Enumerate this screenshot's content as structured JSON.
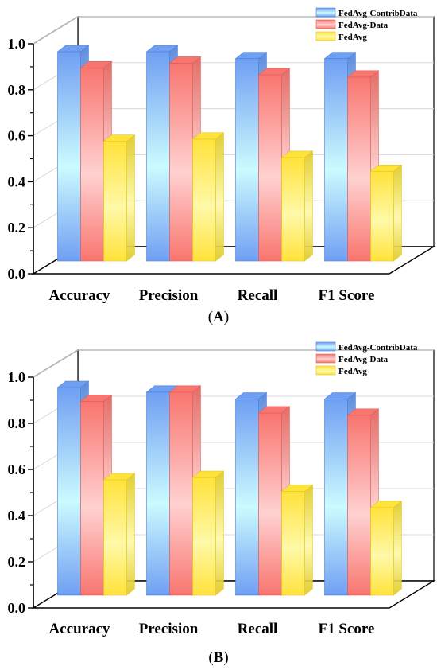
{
  "chart_data": [
    {
      "type": "bar",
      "panel_label": "(A)",
      "panel_letter": "A",
      "categories": [
        "Accuracy",
        "Precision",
        "Recall",
        "F1 Score"
      ],
      "series": [
        {
          "name": "FedAvg-ContribData",
          "values": [
            0.91,
            0.91,
            0.88,
            0.88
          ]
        },
        {
          "name": "FedAvg-Data",
          "values": [
            0.84,
            0.86,
            0.81,
            0.8
          ]
        },
        {
          "name": "FedAvg",
          "values": [
            0.52,
            0.53,
            0.45,
            0.39
          ]
        }
      ],
      "yticks": [
        "0.0",
        "0.2",
        "0.4",
        "0.6",
        "0.8",
        "1.0"
      ],
      "ylim": [
        0,
        1.0
      ],
      "legend": "top-right",
      "grid": true
    },
    {
      "type": "bar",
      "panel_label": "(B)",
      "panel_letter": "B",
      "categories": [
        "Accuracy",
        "Precision",
        "Recall",
        "F1 Score"
      ],
      "series": [
        {
          "name": "FedAvg-ContribData",
          "values": [
            0.9,
            0.88,
            0.85,
            0.85
          ]
        },
        {
          "name": "FedAvg-Data",
          "values": [
            0.84,
            0.88,
            0.79,
            0.78
          ]
        },
        {
          "name": "FedAvg",
          "values": [
            0.5,
            0.51,
            0.45,
            0.38
          ]
        }
      ],
      "yticks": [
        "0.0",
        "0.2",
        "0.4",
        "0.6",
        "0.8",
        "1.0"
      ],
      "ylim": [
        0,
        1.0
      ],
      "legend": "top-right",
      "grid": true
    }
  ],
  "colors": {
    "series_top": [
      "#6f9ff3",
      "#f9756f",
      "#ffe23a"
    ],
    "series_mid": [
      "#ccfaff",
      "#ffd1d1",
      "#fff9a8"
    ],
    "series_dark": [
      "#4d7fd8",
      "#e05e58",
      "#e0c820"
    ],
    "axis": "#000000",
    "grid": "#d8d8d8"
  }
}
